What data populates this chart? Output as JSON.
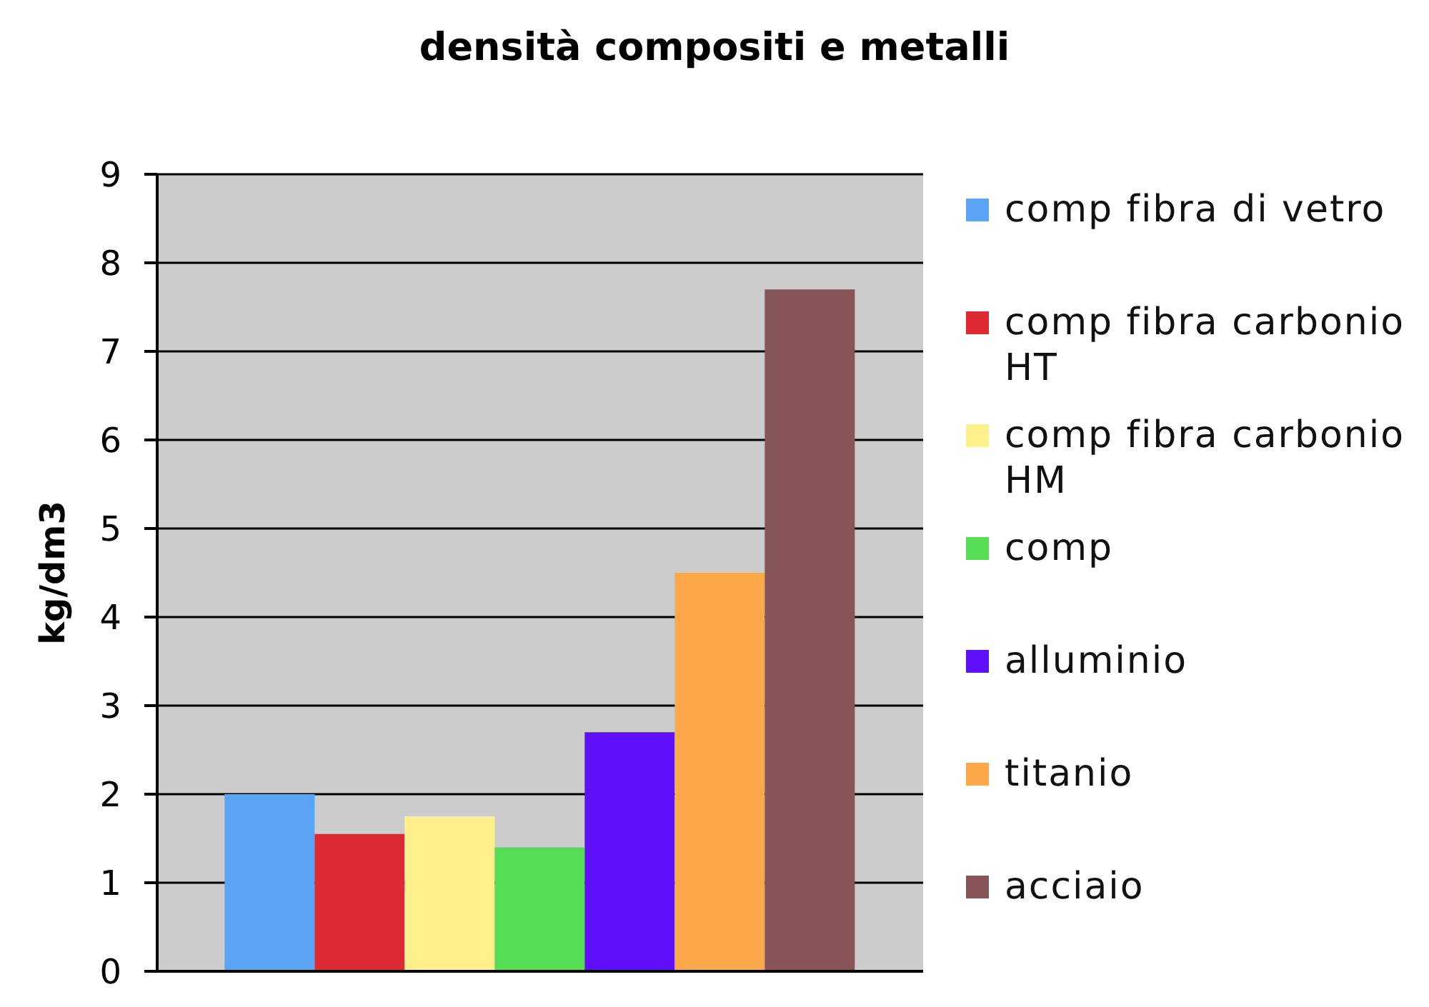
{
  "chart_data": {
    "type": "bar",
    "title": "densità compositi e metalli",
    "ylabel": "kg/dm3",
    "categories": [
      null
    ],
    "series": [
      {
        "name": "comp fibra di vetro",
        "color": "#5ba3f5",
        "values": [
          2.0
        ]
      },
      {
        "name": "comp fibra carbonio HT",
        "color": "#dd2a33",
        "values": [
          1.55
        ]
      },
      {
        "name": "comp fibra carbonio HM",
        "color": "#fff08c",
        "values": [
          1.75
        ]
      },
      {
        "name": "comp",
        "color": "#55dd55",
        "values": [
          1.4
        ]
      },
      {
        "name": "alluminio",
        "color": "#6010f8",
        "values": [
          2.7
        ]
      },
      {
        "name": "titanio",
        "color": "#fca84a",
        "values": [
          4.5
        ]
      },
      {
        "name": "acciaio",
        "color": "#875557",
        "values": [
          7.7
        ]
      }
    ],
    "ylim": [
      0,
      9
    ],
    "yticks": [
      0,
      1,
      2,
      3,
      4,
      5,
      6,
      7,
      8,
      9
    ],
    "grid": "y",
    "legend": "right"
  }
}
